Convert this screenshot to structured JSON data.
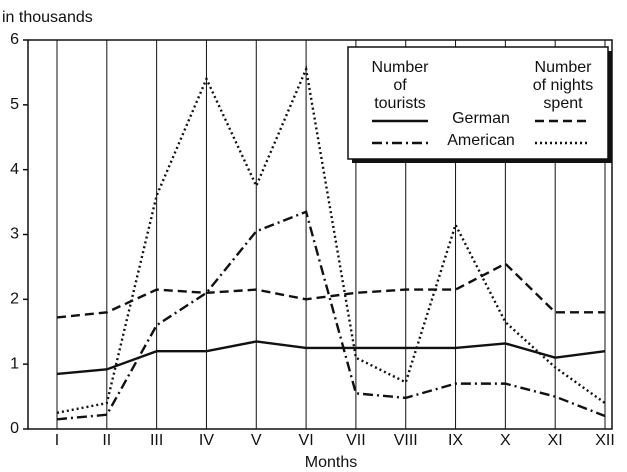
{
  "chart_data": {
    "type": "line",
    "y_label": "in thousands",
    "x_label": "Months",
    "categories": [
      "I",
      "II",
      "III",
      "IV",
      "V",
      "VI",
      "VII",
      "VIII",
      "IX",
      "X",
      "XI",
      "XII"
    ],
    "ylim": [
      0,
      6
    ],
    "yticks": [
      0,
      1,
      2,
      3,
      4,
      5,
      6
    ],
    "legend": {
      "columns": [
        [
          "Number",
          "of",
          "tourists"
        ],
        [
          "Number",
          "of nights",
          "spent"
        ]
      ],
      "rows": [
        "German",
        "American"
      ],
      "position": "upper right"
    },
    "series": [
      {
        "legend_row": 0,
        "legend_col": 0,
        "color": "#111111",
        "style": "solid",
        "values": [
          0.85,
          0.92,
          1.2,
          1.2,
          1.35,
          1.25,
          1.25,
          1.25,
          1.25,
          1.32,
          1.1,
          1.2
        ]
      },
      {
        "legend_row": 0,
        "legend_col": 1,
        "color": "#111111",
        "style": "dashed",
        "values": [
          1.72,
          1.8,
          2.15,
          2.1,
          2.15,
          2.0,
          2.1,
          2.15,
          2.15,
          2.55,
          1.8,
          1.8
        ]
      },
      {
        "legend_row": 1,
        "legend_col": 0,
        "color": "#111111",
        "style": "dashdot",
        "values": [
          0.15,
          0.22,
          1.6,
          2.1,
          3.05,
          3.35,
          0.55,
          0.48,
          0.7,
          0.7,
          0.5,
          0.2
        ]
      },
      {
        "legend_row": 1,
        "legend_col": 1,
        "color": "#111111",
        "style": "dotted",
        "values": [
          0.25,
          0.4,
          3.6,
          5.4,
          3.75,
          5.55,
          1.1,
          0.72,
          3.15,
          1.65,
          0.95,
          0.4
        ]
      }
    ]
  }
}
